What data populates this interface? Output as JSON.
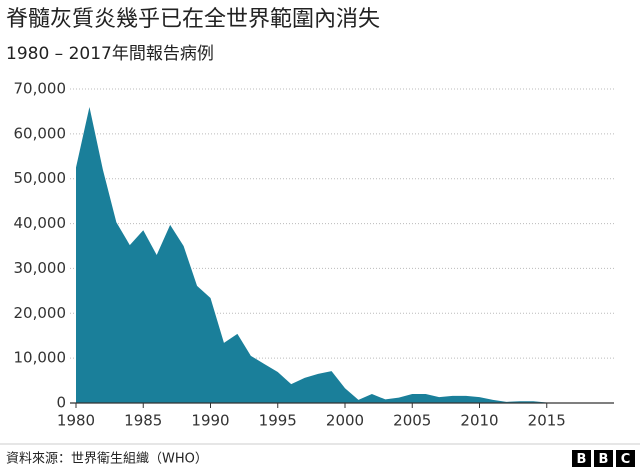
{
  "chart_data": {
    "type": "area",
    "title": "脊髓灰質炎幾乎已在全世界範圍內消失",
    "subtitle": "1980 – 2017年間報告病例",
    "source": "資料來源：世界衛生組織（WHO）",
    "logo": [
      "B",
      "B",
      "C"
    ],
    "color": "#1a7f9a",
    "x": [
      1980,
      1981,
      1982,
      1983,
      1984,
      1985,
      1986,
      1987,
      1988,
      1989,
      1990,
      1991,
      1992,
      1993,
      1994,
      1995,
      1996,
      1997,
      1998,
      1999,
      2000,
      2001,
      2002,
      2003,
      2004,
      2005,
      2006,
      2007,
      2008,
      2009,
      2010,
      2011,
      2012,
      2013,
      2014,
      2015,
      2016,
      2017
    ],
    "values": [
      52500,
      66000,
      52000,
      40300,
      35200,
      38500,
      33000,
      39700,
      35000,
      26100,
      23400,
      13400,
      15400,
      10500,
      8700,
      6900,
      4200,
      5600,
      6500,
      7100,
      3300,
      700,
      2000,
      800,
      1200,
      2000,
      2000,
      1300,
      1600,
      1600,
      1300,
      700,
      250,
      400,
      400,
      100,
      40,
      20
    ],
    "xlim": [
      1980,
      2020
    ],
    "xticks": [
      1980,
      1985,
      1990,
      1995,
      2000,
      2005,
      2010,
      2015
    ],
    "ylim": [
      0,
      70000
    ],
    "yticks": [
      0,
      {
        "value": 10000,
        "label": "10,000"
      },
      {
        "value": 20000,
        "label": "20,000"
      },
      {
        "value": 30000,
        "label": "30,000"
      },
      {
        "value": 40000,
        "label": "40,000"
      },
      {
        "value": 50000,
        "label": "50,000"
      },
      {
        "value": 60000,
        "label": "60,000"
      },
      {
        "value": 70000,
        "label": "70,000"
      }
    ],
    "grid": true
  }
}
